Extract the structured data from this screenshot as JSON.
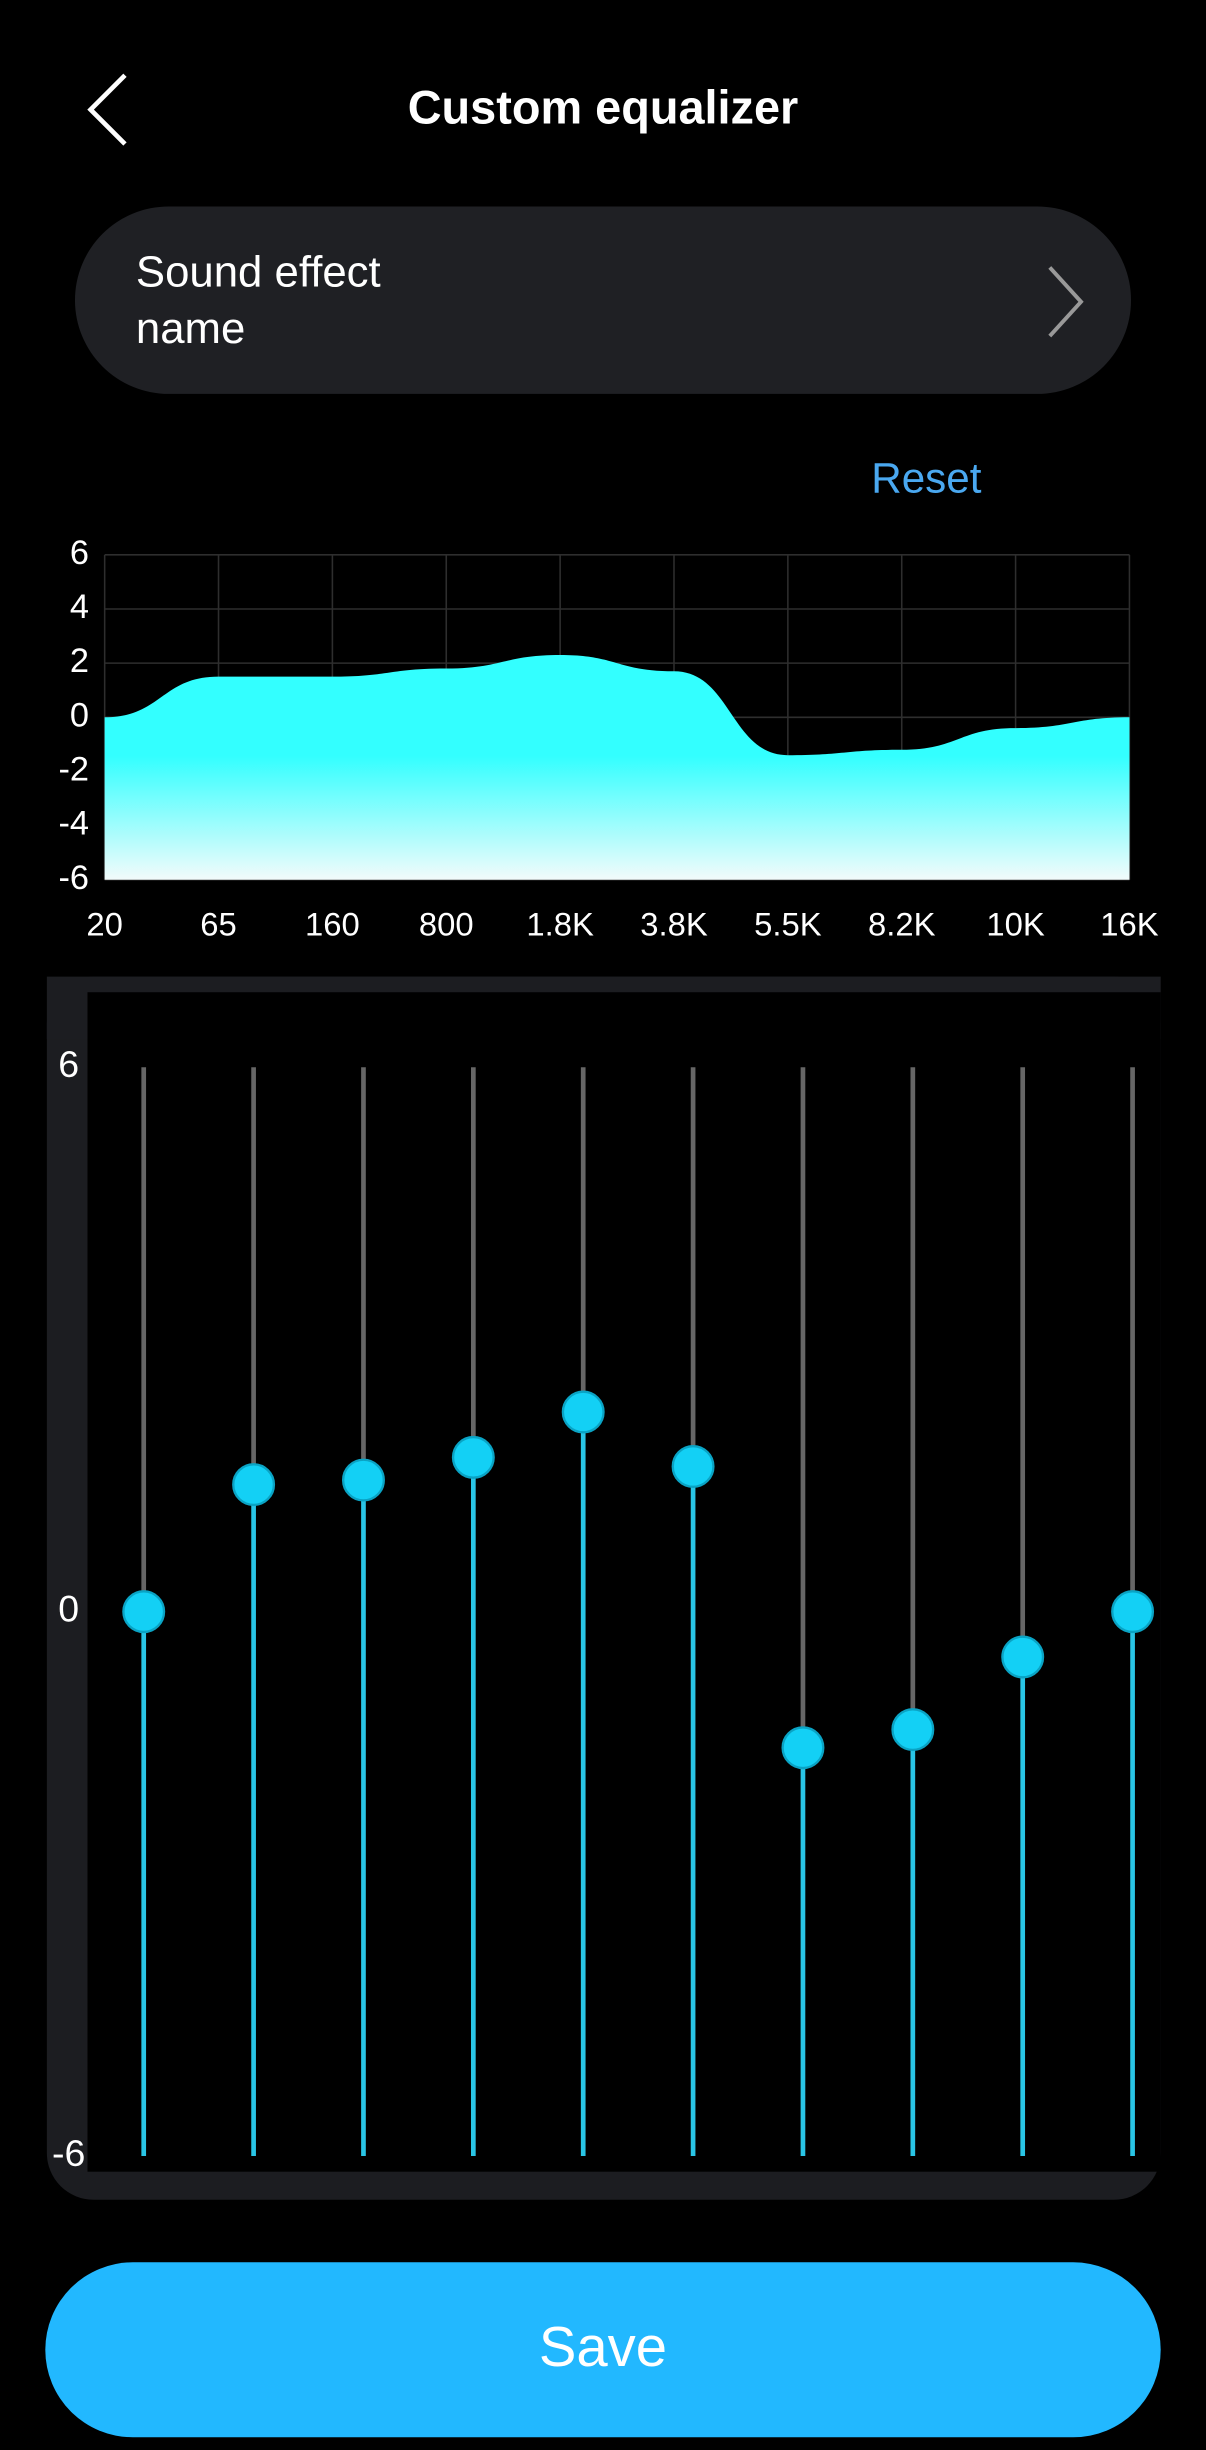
{
  "header": {
    "title": "Custom equalizer"
  },
  "sound_effect": {
    "label_line1": "Sound effect",
    "label_line2": "name"
  },
  "reset": "Reset",
  "chart_data": [
    {
      "type": "area",
      "categories": [
        "20",
        "65",
        "160",
        "800",
        "1.8K",
        "3.8K",
        "5.5K",
        "8.2K",
        "10K",
        "16K"
      ],
      "values": [
        0,
        1.5,
        1.5,
        1.8,
        2.3,
        1.7,
        -1.4,
        -1.2,
        -0.4,
        0
      ],
      "color": "#33ffff",
      "ylim": [
        -6,
        6
      ],
      "yticks": [
        -6,
        -4,
        -2,
        0,
        2,
        4,
        6
      ],
      "grid": true
    },
    {
      "type": "slider",
      "values": [
        0,
        1.4,
        1.45,
        1.7,
        2.2,
        1.6,
        -1.5,
        -1.3,
        -0.5,
        0
      ],
      "color": "#13d0f5",
      "ylim": [
        -6,
        6
      ],
      "yticks": [
        -6,
        0,
        6
      ]
    }
  ],
  "save": "Save"
}
